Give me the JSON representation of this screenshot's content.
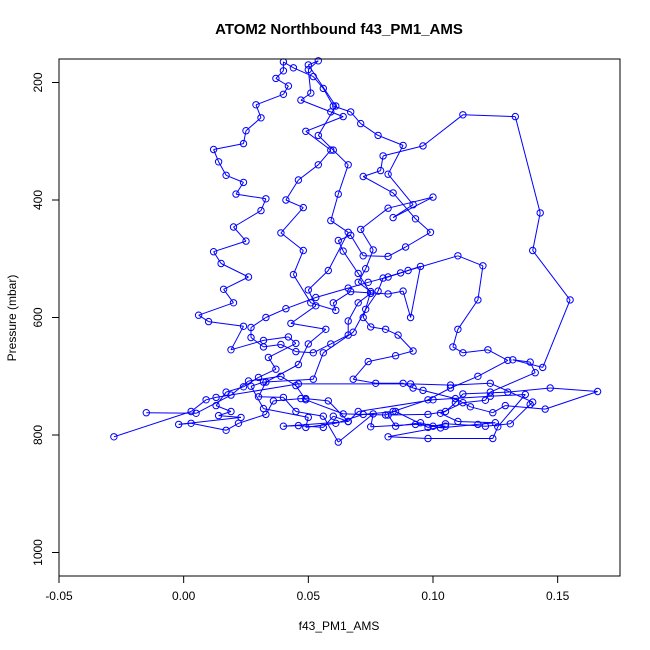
{
  "chart_data": {
    "type": "line",
    "title": "ATOM2 Northbound f43_PM1_AMS",
    "xlabel": "f43_PM1_AMS",
    "ylabel": "Pressure (mbar)",
    "xlim": [
      -0.05,
      0.175
    ],
    "ylim": [
      1040,
      160
    ],
    "y_reversed": true,
    "x_ticks": [
      -0.05,
      0.0,
      0.05,
      0.1,
      0.15
    ],
    "x_tick_labels": [
      "-0.05",
      "0.00",
      "0.05",
      "0.10",
      "0.15"
    ],
    "y_ticks": [
      200,
      400,
      600,
      800,
      1000
    ],
    "y_tick_labels": [
      "200",
      "400",
      "600",
      "800",
      "1000"
    ],
    "grid": false,
    "colors": {
      "series": "#0000ff",
      "axis": "#000000"
    },
    "series": [
      {
        "marker": "open-circle",
        "points": [
          [
            -0.028,
            803
          ],
          [
            0.003,
            760
          ],
          [
            0.009,
            740
          ],
          [
            0.013,
            736
          ],
          [
            0.046,
            713
          ],
          [
            0.091,
            713
          ],
          [
            0.107,
            715
          ],
          [
            0.123,
            712
          ],
          [
            0.14,
            744
          ],
          [
            0.139,
            748
          ],
          [
            0.131,
            781
          ],
          [
            0.121,
            785
          ],
          [
            0.105,
            781
          ],
          [
            0.098,
            787
          ],
          [
            0.085,
            760
          ],
          [
            0.072,
            765
          ],
          [
            0.061,
            780
          ],
          [
            0.049,
            787
          ],
          [
            0.05,
            770
          ],
          [
            0.032,
            755
          ],
          [
            0.027,
            717
          ],
          [
            0.032,
            710
          ],
          [
            0.052,
            705
          ],
          [
            0.056,
            660
          ],
          [
            0.068,
            625
          ],
          [
            0.073,
            586
          ],
          [
            0.078,
            555
          ],
          [
            0.08,
            533
          ],
          [
            0.087,
            524
          ],
          [
            0.095,
            513
          ],
          [
            0.091,
            600
          ],
          [
            0.088,
            555
          ],
          [
            0.082,
            560
          ],
          [
            0.067,
            556
          ],
          [
            0.06,
            575
          ],
          [
            0.061,
            588
          ],
          [
            0.051,
            575
          ],
          [
            0.044,
            527
          ],
          [
            0.048,
            486
          ],
          [
            0.039,
            456
          ],
          [
            0.048,
            413
          ],
          [
            0.041,
            400
          ],
          [
            0.046,
            366
          ],
          [
            0.054,
            340
          ],
          [
            0.059,
            315
          ],
          [
            0.049,
            283
          ],
          [
            0.064,
            258
          ],
          [
            0.059,
            250
          ],
          [
            0.047,
            230
          ],
          [
            0.051,
            218
          ],
          [
            0.05,
            178
          ],
          [
            0.054,
            163
          ],
          [
            0.05,
            170
          ],
          [
            0.061,
            240
          ],
          [
            0.054,
            290
          ],
          [
            0.06,
            315
          ],
          [
            0.066,
            340
          ],
          [
            0.062,
            390
          ],
          [
            0.059,
            435
          ],
          [
            0.066,
            455
          ],
          [
            0.058,
            520
          ],
          [
            0.05,
            553
          ],
          [
            0.053,
            580
          ],
          [
            0.043,
            610
          ],
          [
            0.057,
            620
          ],
          [
            0.05,
            645
          ],
          [
            0.046,
            680
          ],
          [
            0.033,
            710
          ],
          [
            0.03,
            735
          ],
          [
            0.04,
            736
          ],
          [
            0.045,
            760
          ],
          [
            0.056,
            768
          ],
          [
            0.062,
            812
          ],
          [
            0.076,
            764
          ],
          [
            0.075,
            786
          ],
          [
            0.093,
            782
          ],
          [
            0.105,
            785
          ],
          [
            0.082,
            803
          ],
          [
            0.098,
            806
          ],
          [
            0.124,
            806
          ],
          [
            0.126,
            786
          ],
          [
            0.137,
            731
          ],
          [
            0.123,
            734
          ],
          [
            0.1,
            740
          ],
          [
            0.07,
            760
          ],
          [
            0.066,
            777
          ],
          [
            0.04,
            785
          ],
          [
            0.046,
            784
          ],
          [
            0.056,
            787
          ],
          [
            0.06,
            768
          ],
          [
            0.066,
            777
          ],
          [
            0.058,
            742
          ],
          [
            0.049,
            738
          ],
          [
            0.047,
            738
          ],
          [
            0.036,
            742
          ],
          [
            0.033,
            765
          ],
          [
            0.022,
            780
          ],
          [
            0.017,
            792
          ],
          [
            0.003,
            780
          ],
          [
            -0.002,
            782
          ],
          [
            0.023,
            770
          ],
          [
            0.014,
            767
          ],
          [
            0.019,
            760
          ],
          [
            0.013,
            750
          ],
          [
            0.017,
            727
          ],
          [
            0.024,
            718
          ],
          [
            0.03,
            702
          ],
          [
            0.037,
            688
          ],
          [
            0.034,
            668
          ],
          [
            0.045,
            644
          ],
          [
            0.042,
            633
          ],
          [
            0.032,
            639
          ],
          [
            0.019,
            655
          ],
          [
            0.024,
            615
          ],
          [
            0.01,
            607
          ],
          [
            0.006,
            596
          ],
          [
            0.02,
            575
          ],
          [
            0.016,
            552
          ],
          [
            0.026,
            531
          ],
          [
            0.015,
            508
          ],
          [
            0.012,
            488
          ],
          [
            0.025,
            470
          ],
          [
            0.02,
            446
          ],
          [
            0.031,
            418
          ],
          [
            0.033,
            398
          ],
          [
            0.021,
            390
          ],
          [
            0.024,
            370
          ],
          [
            0.017,
            358
          ],
          [
            0.014,
            335
          ],
          [
            0.012,
            314
          ],
          [
            0.024,
            304
          ],
          [
            0.025,
            282
          ],
          [
            0.031,
            260
          ],
          [
            0.029,
            238
          ],
          [
            0.04,
            220
          ],
          [
            0.042,
            206
          ],
          [
            0.037,
            193
          ],
          [
            0.04,
            180
          ],
          [
            0.04,
            165
          ],
          [
            0.044,
            175
          ],
          [
            0.052,
            190
          ],
          [
            0.056,
            210
          ],
          [
            0.06,
            240
          ],
          [
            0.067,
            250
          ],
          [
            0.071,
            270
          ],
          [
            0.078,
            290
          ],
          [
            0.088,
            307
          ],
          [
            0.082,
            356
          ],
          [
            0.092,
            408
          ],
          [
            0.084,
            430
          ],
          [
            0.1,
            395
          ],
          [
            0.082,
            414
          ],
          [
            0.071,
            450
          ],
          [
            0.076,
            485
          ],
          [
            0.073,
            517
          ],
          [
            0.07,
            540
          ],
          [
            0.075,
            556
          ],
          [
            0.072,
            600
          ],
          [
            0.075,
            616
          ],
          [
            0.081,
            620
          ],
          [
            0.086,
            630
          ],
          [
            0.092,
            657
          ],
          [
            0.085,
            665
          ],
          [
            0.074,
            675
          ],
          [
            0.068,
            705
          ],
          [
            0.077,
            712
          ],
          [
            0.088,
            712
          ],
          [
            0.092,
            720
          ],
          [
            0.096,
            724
          ],
          [
            0.109,
            738
          ],
          [
            0.115,
            752
          ],
          [
            0.124,
            762
          ],
          [
            0.129,
            750
          ],
          [
            0.145,
            756
          ],
          [
            0.166,
            726
          ],
          [
            0.147,
            720
          ],
          [
            0.13,
            727
          ],
          [
            0.112,
            730
          ],
          [
            0.109,
            745
          ],
          [
            0.105,
            760
          ],
          [
            0.098,
            765
          ],
          [
            0.082,
            766
          ],
          [
            0.085,
            785
          ],
          [
            0.095,
            779
          ],
          [
            0.1,
            785
          ],
          [
            0.103,
            788
          ],
          [
            0.118,
            782
          ],
          [
            0.125,
            779
          ],
          [
            0.11,
            777
          ],
          [
            0.103,
            763
          ],
          [
            0.112,
            745
          ],
          [
            0.121,
            741
          ],
          [
            0.123,
            727
          ],
          [
            0.141,
            694
          ],
          [
            0.139,
            676
          ],
          [
            0.132,
            672
          ],
          [
            0.144,
            685
          ],
          [
            0.155,
            570
          ],
          [
            0.14,
            486
          ],
          [
            0.143,
            422
          ],
          [
            0.133,
            258
          ],
          [
            0.112,
            255
          ],
          [
            0.096,
            308
          ],
          [
            0.08,
            325
          ],
          [
            0.079,
            350
          ],
          [
            0.072,
            360
          ],
          [
            0.084,
            388
          ],
          [
            0.093,
            432
          ],
          [
            0.099,
            455
          ],
          [
            0.089,
            480
          ],
          [
            0.082,
            496
          ],
          [
            0.072,
            495
          ],
          [
            0.067,
            460
          ],
          [
            0.062,
            469
          ],
          [
            0.064,
            487
          ],
          [
            0.07,
            525
          ],
          [
            0.075,
            559
          ],
          [
            0.07,
            575
          ],
          [
            0.066,
            606
          ],
          [
            0.066,
            630
          ],
          [
            0.059,
            645
          ],
          [
            0.052,
            660
          ],
          [
            0.045,
            658
          ],
          [
            0.039,
            646
          ],
          [
            0.032,
            650
          ],
          [
            0.027,
            634
          ],
          [
            0.027,
            617
          ],
          [
            0.033,
            600
          ],
          [
            0.041,
            585
          ],
          [
            0.053,
            566
          ],
          [
            0.066,
            550
          ],
          [
            0.074,
            540
          ],
          [
            0.082,
            531
          ],
          [
            0.09,
            520
          ],
          [
            0.11,
            495
          ],
          [
            0.12,
            512
          ],
          [
            0.118,
            570
          ],
          [
            0.11,
            620
          ],
          [
            0.108,
            650
          ],
          [
            0.112,
            660
          ],
          [
            0.122,
            655
          ],
          [
            0.13,
            673
          ],
          [
            0.118,
            700
          ],
          [
            0.107,
            720
          ],
          [
            0.098,
            740
          ],
          [
            0.084,
            760
          ],
          [
            0.081,
            766
          ],
          [
            0.064,
            764
          ],
          [
            0.049,
            740
          ],
          [
            0.045,
            716
          ],
          [
            0.039,
            700
          ],
          [
            0.026,
            708
          ],
          [
            0.019,
            732
          ],
          [
            0.005,
            763
          ],
          [
            -0.015,
            762
          ]
        ]
      }
    ]
  }
}
